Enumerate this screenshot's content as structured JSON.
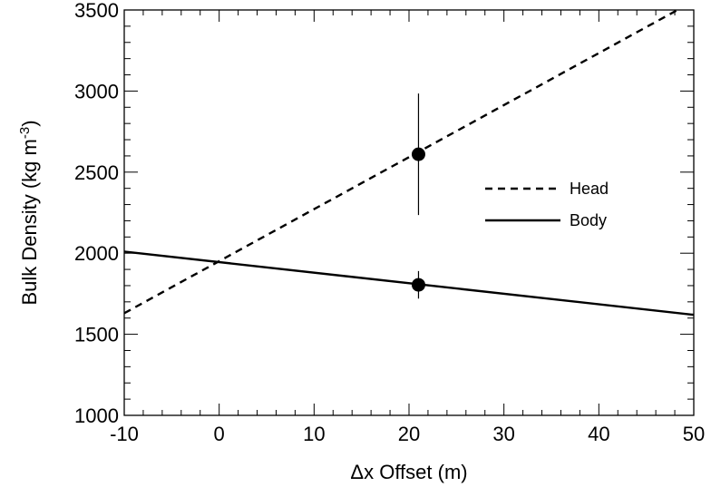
{
  "chart_data": {
    "type": "line",
    "title": "",
    "xlabel": "Δx Offset (m)",
    "ylabel_main": "Bulk Density (kg m",
    "ylabel_sup": "-3",
    "ylabel_close": ")",
    "xlim": [
      -10,
      50
    ],
    "ylim": [
      1000,
      3500
    ],
    "x_ticks": [
      -10,
      0,
      10,
      20,
      30,
      40,
      50
    ],
    "x_tick_labels": [
      "-10",
      "0",
      "10",
      "20",
      "30",
      "40",
      "50"
    ],
    "y_ticks": [
      1000,
      1500,
      2000,
      2500,
      3000,
      3500
    ],
    "y_tick_labels": [
      "1000",
      "1500",
      "2000",
      "2500",
      "3000",
      "3500"
    ],
    "x_minor_step": 2,
    "y_minor_step": 100,
    "grid": false,
    "legend_position": "right",
    "series": [
      {
        "name": "Head",
        "style": "dashed",
        "color": "#000000",
        "x": [
          -10,
          50
        ],
        "y": [
          1630,
          3555
        ]
      },
      {
        "name": "Body",
        "style": "solid",
        "color": "#000000",
        "x": [
          -10,
          50
        ],
        "y": [
          2010,
          1620
        ]
      }
    ],
    "points": [
      {
        "series": "Head",
        "x": 21,
        "y": 2610,
        "err_low": 2235,
        "err_high": 2985
      },
      {
        "series": "Body",
        "x": 21,
        "y": 1805,
        "err_low": 1720,
        "err_high": 1890
      }
    ]
  }
}
